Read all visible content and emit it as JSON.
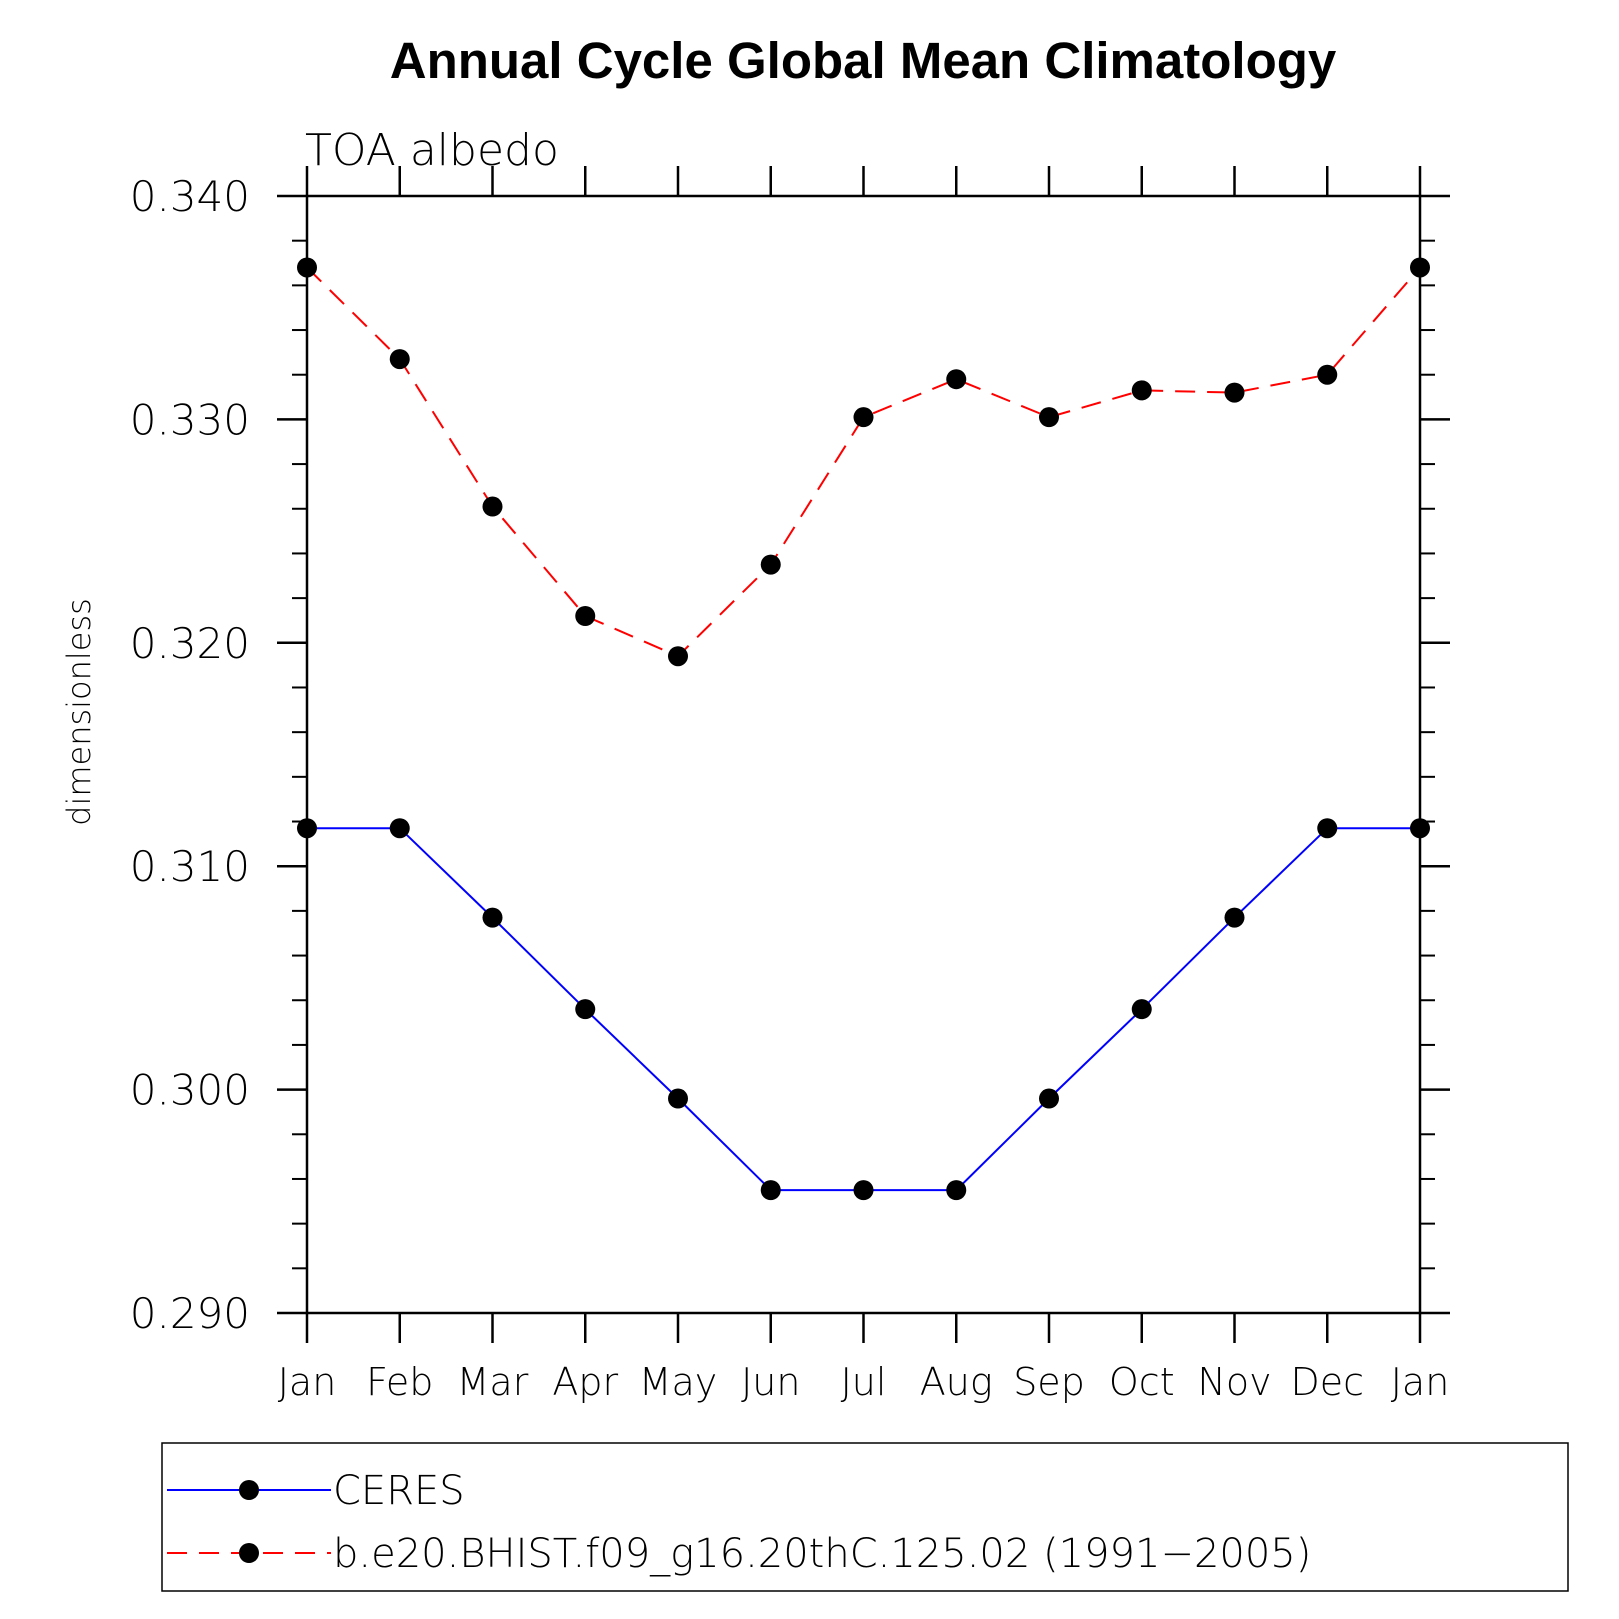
{
  "chart_data": {
    "type": "line",
    "title": "Annual Cycle Global Mean Climatology",
    "subtitle": "TOA albedo",
    "xlabel": "",
    "ylabel": "dimensionless",
    "categories": [
      "Jan",
      "Feb",
      "Mar",
      "Apr",
      "May",
      "Jun",
      "Jul",
      "Aug",
      "Sep",
      "Oct",
      "Nov",
      "Dec",
      "Jan"
    ],
    "ylim": [
      0.29,
      0.34
    ],
    "y_ticks": [
      "0.290",
      "0.300",
      "0.310",
      "0.320",
      "0.330",
      "0.340"
    ],
    "grid": false,
    "legend_position": "bottom",
    "series": [
      {
        "name": "CERES",
        "color": "#0000ff",
        "line_style": "solid",
        "marker": "filled-circle",
        "values": [
          0.3117,
          0.3117,
          0.3077,
          0.3036,
          0.2996,
          0.2955,
          0.2955,
          0.2955,
          0.2996,
          0.3036,
          0.3077,
          0.3117,
          0.3117
        ]
      },
      {
        "name": "b.e20.BHIST.f09_g16.20thC.125.02 (1991−2005)",
        "color": "#ff0000",
        "line_style": "dashed",
        "marker": "filled-circle",
        "values": [
          0.3368,
          0.3327,
          0.3261,
          0.3212,
          0.3194,
          0.3235,
          0.3301,
          0.3318,
          0.3301,
          0.3313,
          0.3312,
          0.332,
          0.3368
        ]
      }
    ]
  }
}
